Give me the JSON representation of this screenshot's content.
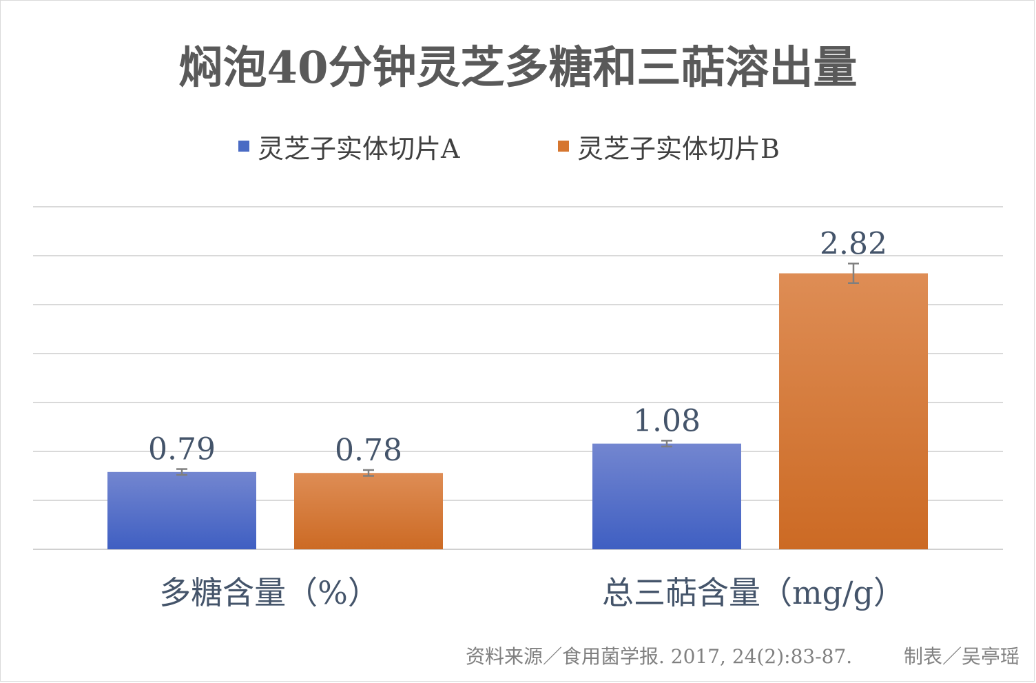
{
  "chart_data": {
    "type": "bar",
    "title": "焖泡40分钟灵芝多糖和三萜溶出量",
    "categories": [
      "多糖含量（%）",
      "总三萜含量（mg/g）"
    ],
    "series": [
      {
        "name": "灵芝子实体切片A",
        "color": "#4a6bc4",
        "values": [
          0.79,
          1.08
        ],
        "labels": [
          "0.79",
          "1.08"
        ],
        "error": [
          0.03,
          0.03
        ]
      },
      {
        "name": "灵芝子实体切片B",
        "color": "#d6762f",
        "values": [
          0.78,
          2.82
        ],
        "labels": [
          "0.78",
          "2.82"
        ],
        "error": [
          0.03,
          0.1
        ]
      }
    ],
    "ylim": [
      0,
      3.5
    ],
    "gridlines": 7,
    "grid": true,
    "legend_position": "top-center",
    "xlabel": "",
    "ylabel": ""
  },
  "footer": {
    "source": "资料来源／食用菌学报. 2017, 24(2):83-87.",
    "author": "制表／吴亭瑶"
  }
}
